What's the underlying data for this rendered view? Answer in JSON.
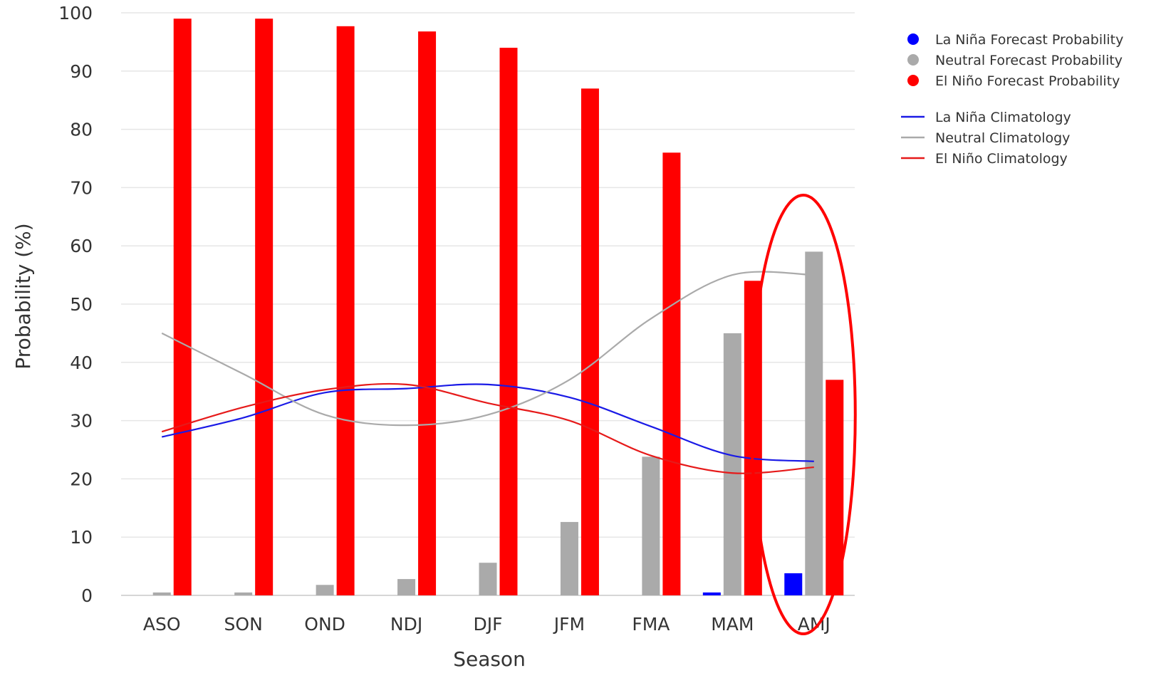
{
  "chart_data": {
    "type": "bar",
    "categories": [
      "ASO",
      "SON",
      "OND",
      "NDJ",
      "DJF",
      "JFM",
      "FMA",
      "MAM",
      "AMJ"
    ],
    "xlabel": "Season",
    "ylabel": "Probability (%)",
    "ylim": [
      0,
      100
    ],
    "yticks": [
      0,
      10,
      20,
      30,
      40,
      50,
      60,
      70,
      80,
      90,
      100
    ],
    "grid": true,
    "legend_position": "top-right",
    "series": [
      {
        "name": "La Niña Forecast Probability",
        "kind": "bar",
        "color": "#0000ff",
        "values": [
          0,
          0,
          0,
          0,
          0,
          0,
          0,
          0.5,
          3.8
        ]
      },
      {
        "name": "Neutral Forecast Probability",
        "kind": "bar",
        "color": "#aaaaaa",
        "values": [
          0.5,
          0.5,
          1.8,
          2.8,
          5.6,
          12.6,
          23.8,
          45,
          59
        ]
      },
      {
        "name": "El Niño Forecast Probability",
        "kind": "bar",
        "color": "#ff0000",
        "values": [
          99,
          99,
          97.7,
          96.8,
          94,
          87,
          76,
          54,
          37
        ]
      },
      {
        "name": "La Niña Climatology",
        "kind": "line",
        "color": "#1a1ae6",
        "values": [
          27.2,
          30.5,
          34.8,
          35.5,
          36.2,
          34,
          29,
          24,
          23
        ]
      },
      {
        "name": "Neutral Climatology",
        "kind": "line",
        "color": "#aaaaaa",
        "values": [
          45,
          38,
          31,
          29.2,
          31,
          37,
          47.5,
          55,
          55
        ]
      },
      {
        "name": "El Niño Climatology",
        "kind": "line",
        "color": "#e61a1a",
        "values": [
          28.1,
          32.3,
          35.3,
          36.2,
          33,
          30,
          24,
          21,
          22
        ]
      }
    ],
    "annotations": [
      {
        "type": "ellipse",
        "category": "AMJ",
        "color": "#ff0000"
      }
    ]
  }
}
